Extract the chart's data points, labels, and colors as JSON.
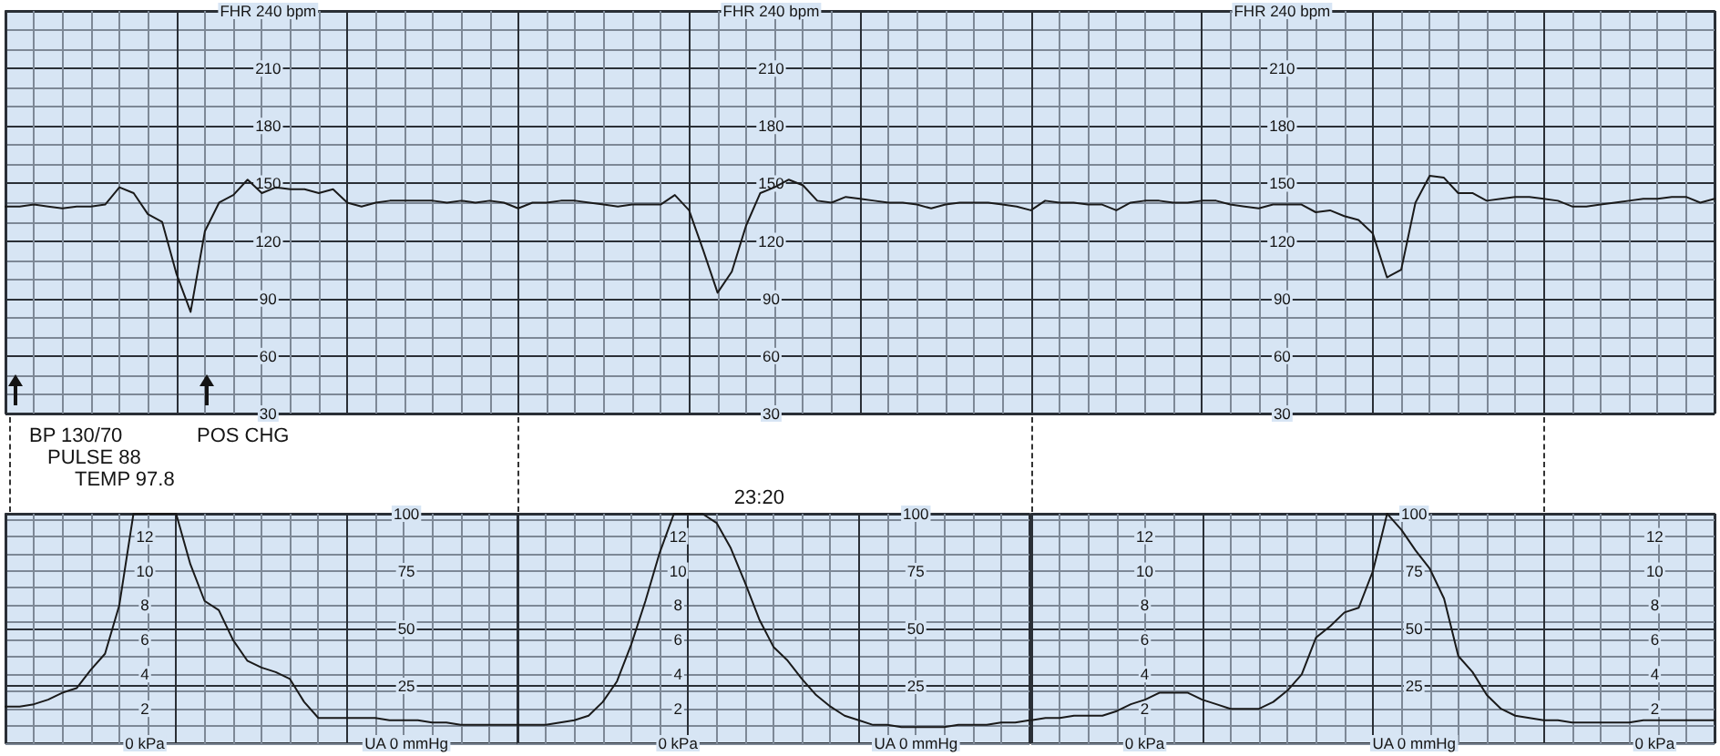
{
  "chart_data": [
    {
      "type": "line",
      "categories": [
        null,
        null,
        null,
        null,
        null,
        null,
        null,
        null,
        null,
        null,
        null,
        null,
        null,
        null,
        null,
        null,
        null,
        null,
        null,
        null,
        null,
        null,
        null,
        null,
        null,
        null,
        null,
        null,
        null,
        null,
        null,
        null,
        null,
        null,
        null,
        null,
        null,
        null,
        null,
        null,
        null,
        null,
        null,
        null,
        null,
        null,
        null,
        null,
        null,
        null,
        null,
        null,
        null,
        null,
        null,
        null,
        null,
        null,
        null,
        null,
        null,
        null,
        null,
        null,
        null,
        null,
        null,
        null,
        null,
        null,
        null,
        null,
        null,
        null,
        null,
        null,
        null,
        null,
        null,
        null,
        null,
        null,
        null,
        null,
        null,
        null,
        null,
        null,
        null,
        null,
        null,
        null,
        null,
        null,
        null,
        null,
        null,
        null,
        null,
        null,
        null,
        null,
        null,
        null,
        null,
        null,
        null,
        null,
        null,
        null,
        null,
        null,
        null,
        null,
        null,
        null,
        null,
        null,
        null,
        null,
        null
      ],
      "series": [
        {
          "color": "#1a1a1a",
          "values": [
            138,
            138,
            139,
            138,
            137,
            138,
            138,
            139,
            148,
            145,
            134,
            130,
            103,
            83,
            125,
            140,
            144,
            152,
            145,
            148,
            147,
            147,
            145,
            147,
            140,
            138,
            140,
            141,
            141,
            141,
            141,
            140,
            141,
            140,
            141,
            140,
            137,
            140,
            140,
            141,
            141,
            140,
            139,
            138,
            139,
            139,
            139,
            144,
            136,
            115,
            93,
            104,
            128,
            145,
            148,
            152,
            149,
            141,
            140,
            143,
            142,
            141,
            140,
            140,
            139,
            137,
            139,
            140,
            140,
            140,
            139,
            138,
            136,
            141,
            140,
            140,
            139,
            139,
            136,
            140,
            141,
            141,
            140,
            140,
            141,
            141,
            139,
            138,
            137,
            139,
            139,
            139,
            135,
            136,
            133,
            131,
            124,
            101,
            105,
            140,
            154,
            153,
            145,
            145,
            141,
            142,
            143,
            143,
            142,
            141,
            138,
            138,
            139,
            140,
            141,
            142,
            142,
            143,
            143,
            140,
            142
          ]
        }
      ],
      "ylim": [
        30,
        240
      ],
      "yticks": [
        30,
        {
          "value": 40,
          "label": null
        },
        {
          "value": 50,
          "label": null
        },
        60,
        {
          "value": 70,
          "label": null
        },
        {
          "value": 80,
          "label": null
        },
        90,
        {
          "value": 100,
          "label": null
        },
        {
          "value": 110,
          "label": null
        },
        120,
        {
          "value": 130,
          "label": null
        },
        {
          "value": 140,
          "label": null
        },
        150,
        {
          "value": 160,
          "label": null
        },
        {
          "value": 170,
          "label": null
        },
        180,
        {
          "value": 190,
          "label": null
        },
        {
          "value": 200,
          "label": null
        },
        210,
        {
          "value": 220,
          "label": null
        },
        {
          "value": 230,
          "label": null
        },
        {
          "value": 240,
          "label": "FHR 240 bpm"
        }
      ],
      "y2lim": [
        30,
        240
      ],
      "y2ticks": [
        30,
        60,
        90,
        120,
        150,
        180,
        210,
        {
          "value": 240,
          "label": "FHR 240 bpm"
        }
      ],
      "y3lim": [
        30,
        240
      ],
      "y3ticks": [
        30,
        60,
        90,
        120,
        150,
        180,
        210,
        {
          "value": 240,
          "label": "FHR 240 bpm"
        }
      ],
      "grid": true,
      "annotations": [
        "BP 130/70",
        "PULSE 88",
        "TEMP 97.8",
        "POS CHG"
      ]
    },
    {
      "type": "line",
      "categories": [
        null,
        null,
        null,
        null,
        null,
        null,
        null,
        null,
        null,
        null,
        null,
        null,
        null,
        null,
        null,
        null,
        null,
        null,
        null,
        null,
        null,
        null,
        null,
        null,
        null,
        null,
        null,
        null,
        null,
        null,
        null,
        null,
        null,
        null,
        null,
        null,
        null
      ],
      "series": [
        {
          "color": "#1a1a1a",
          "values": [
            16,
            16,
            17,
            19,
            22,
            24,
            32,
            39,
            60,
            100,
            100,
            100,
            100,
            78,
            62,
            58,
            45,
            36,
            33,
            31,
            28,
            18,
            11,
            11,
            11,
            11,
            11,
            10,
            10,
            10,
            9,
            9,
            8,
            8,
            8,
            8,
            8
          ]
        }
      ],
      "ylim": [
        0,
        100
      ],
      "yticks": [
        {
          "value": 0,
          "label": "UA 0 mmHg"
        },
        25,
        50,
        75,
        100
      ],
      "y2lim": [
        0,
        13.3
      ],
      "y2ticks": [
        {
          "value": 0,
          "label": "0 kPa"
        },
        {
          "value": 1,
          "label": null
        },
        2,
        {
          "value": 3,
          "label": null
        },
        4,
        {
          "value": 5,
          "label": null
        },
        6,
        {
          "value": 7,
          "label": null
        },
        8,
        {
          "value": 9,
          "label": null
        },
        10,
        {
          "value": 11,
          "label": null
        },
        12,
        {
          "value": 13,
          "label": null
        }
      ],
      "grid": true
    },
    {
      "type": "line",
      "categories": [
        null,
        null,
        null,
        null,
        null,
        null,
        null,
        null,
        null,
        null,
        null,
        null,
        null,
        null,
        null,
        null,
        null,
        "23:20",
        null,
        null,
        null,
        null,
        null,
        null,
        null,
        null,
        null,
        null,
        null,
        null,
        null,
        null,
        null,
        null,
        null,
        null,
        null
      ],
      "series": [
        {
          "color": "#1a1a1a",
          "values": [
            8,
            8,
            8,
            9,
            10,
            12,
            18,
            27,
            43,
            62,
            83,
            100,
            100,
            100,
            96,
            85,
            70,
            54,
            42,
            36,
            28,
            21,
            16,
            12,
            10,
            8,
            8,
            7,
            7,
            7,
            7,
            8,
            8,
            8,
            9,
            9,
            10
          ]
        }
      ],
      "ylim": [
        0,
        100
      ],
      "yticks": [
        {
          "value": 0,
          "label": "UA 0 mmHg"
        },
        25,
        50,
        75,
        100
      ],
      "y2lim": [
        0,
        13.3
      ],
      "y2ticks": [
        {
          "value": 0,
          "label": "0 kPa"
        },
        {
          "value": 1,
          "label": null
        },
        2,
        {
          "value": 3,
          "label": null
        },
        4,
        {
          "value": 5,
          "label": null
        },
        6,
        {
          "value": 7,
          "label": null
        },
        8,
        {
          "value": 9,
          "label": null
        },
        10,
        {
          "value": 11,
          "label": null
        },
        12,
        {
          "value": 13,
          "label": null
        }
      ],
      "grid": true
    },
    {
      "type": "line",
      "categories": [
        null,
        null,
        null,
        null,
        null,
        null,
        null,
        null,
        null,
        null,
        null,
        null,
        null,
        null,
        null,
        null,
        null,
        null,
        null,
        null,
        null,
        null,
        null,
        null,
        null,
        null,
        null,
        null,
        null,
        null,
        null,
        null,
        null,
        null,
        null,
        null,
        null,
        null,
        null,
        null,
        null,
        null,
        null,
        null,
        null,
        null,
        null,
        null,
        null
      ],
      "series": [
        {
          "color": "#1a1a1a",
          "values": [
            10,
            11,
            11,
            12,
            12,
            12,
            14,
            17,
            19,
            22,
            22,
            22,
            19,
            17,
            15,
            15,
            15,
            18,
            23,
            30,
            46,
            51,
            57,
            59,
            75,
            100,
            93,
            84,
            76,
            63,
            38,
            31,
            21,
            15,
            12,
            11,
            10,
            10,
            9,
            9,
            9,
            9,
            9,
            10,
            10,
            10,
            10,
            10,
            10
          ]
        }
      ],
      "ylim": [
        0,
        100
      ],
      "yticks": [
        {
          "value": 0,
          "label": "UA 0 mmHg"
        },
        25,
        50,
        75,
        100
      ],
      "y2lim": [
        0,
        13.3
      ],
      "y2ticks": [
        {
          "value": 0,
          "label": "0 kPa"
        },
        {
          "value": 1,
          "label": null
        },
        2,
        {
          "value": 3,
          "label": null
        },
        4,
        {
          "value": 5,
          "label": null
        },
        6,
        {
          "value": 7,
          "label": null
        },
        8,
        {
          "value": 9,
          "label": null
        },
        10,
        {
          "value": 11,
          "label": null
        },
        12,
        {
          "value": 13,
          "label": null
        }
      ],
      "y3lim": [
        0,
        13.3
      ],
      "y3ticks": [
        {
          "value": 0,
          "label": "0 kPa"
        },
        2,
        4,
        6,
        8,
        10,
        12
      ],
      "grid": true
    }
  ]
}
